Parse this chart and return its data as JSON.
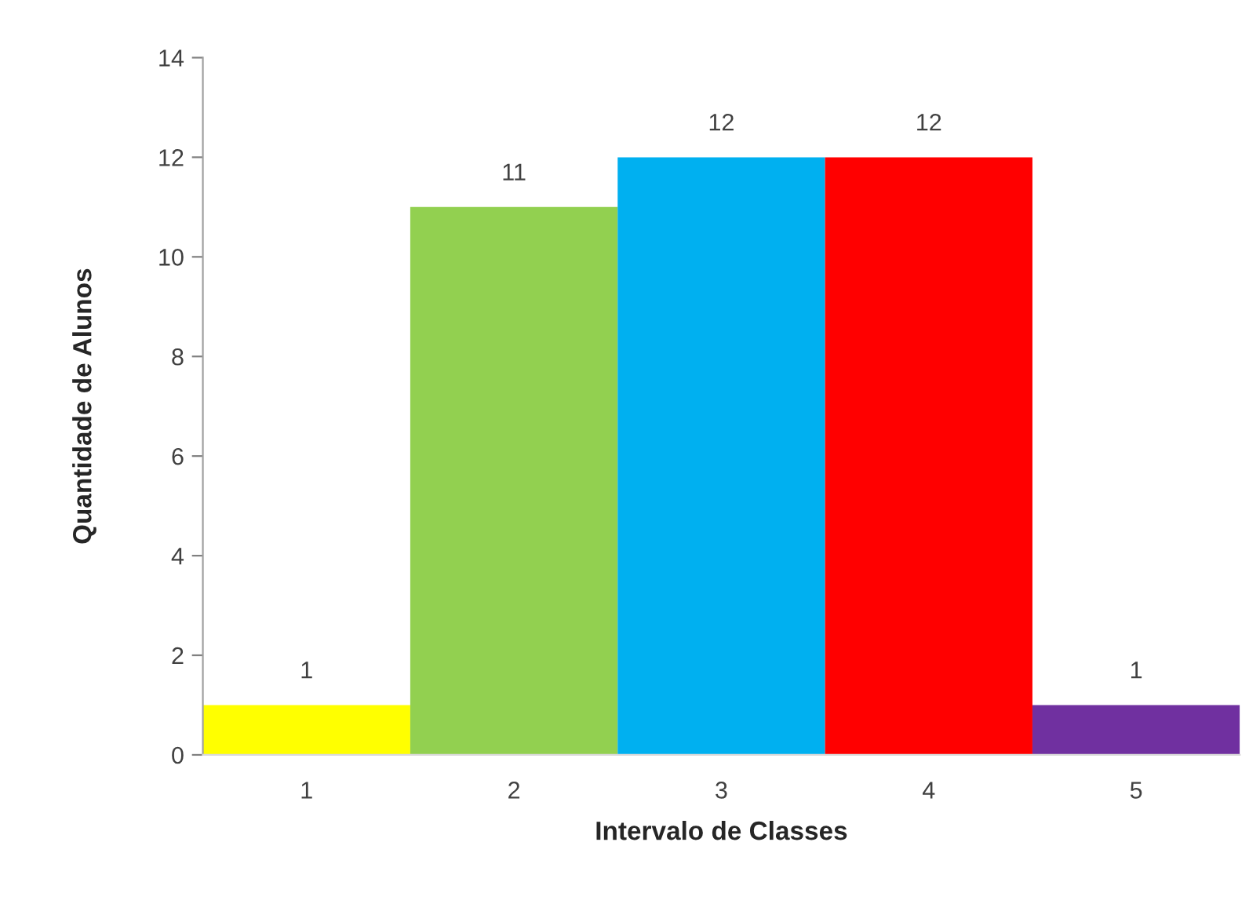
{
  "chart_data": {
    "type": "bar",
    "categories": [
      "1",
      "2",
      "3",
      "4",
      "5"
    ],
    "values": [
      1,
      11,
      12,
      12,
      1
    ],
    "colors": [
      "#ffff00",
      "#92d050",
      "#00b0f0",
      "#ff0000",
      "#7030a0"
    ],
    "xlabel": "Intervalo de Classes",
    "ylabel": "Quantidade de Alunos",
    "ylim": [
      0,
      14
    ],
    "yticks": [
      0,
      2,
      4,
      6,
      8,
      10,
      12,
      14
    ],
    "data_labels": true,
    "grid": false,
    "legend": false
  }
}
